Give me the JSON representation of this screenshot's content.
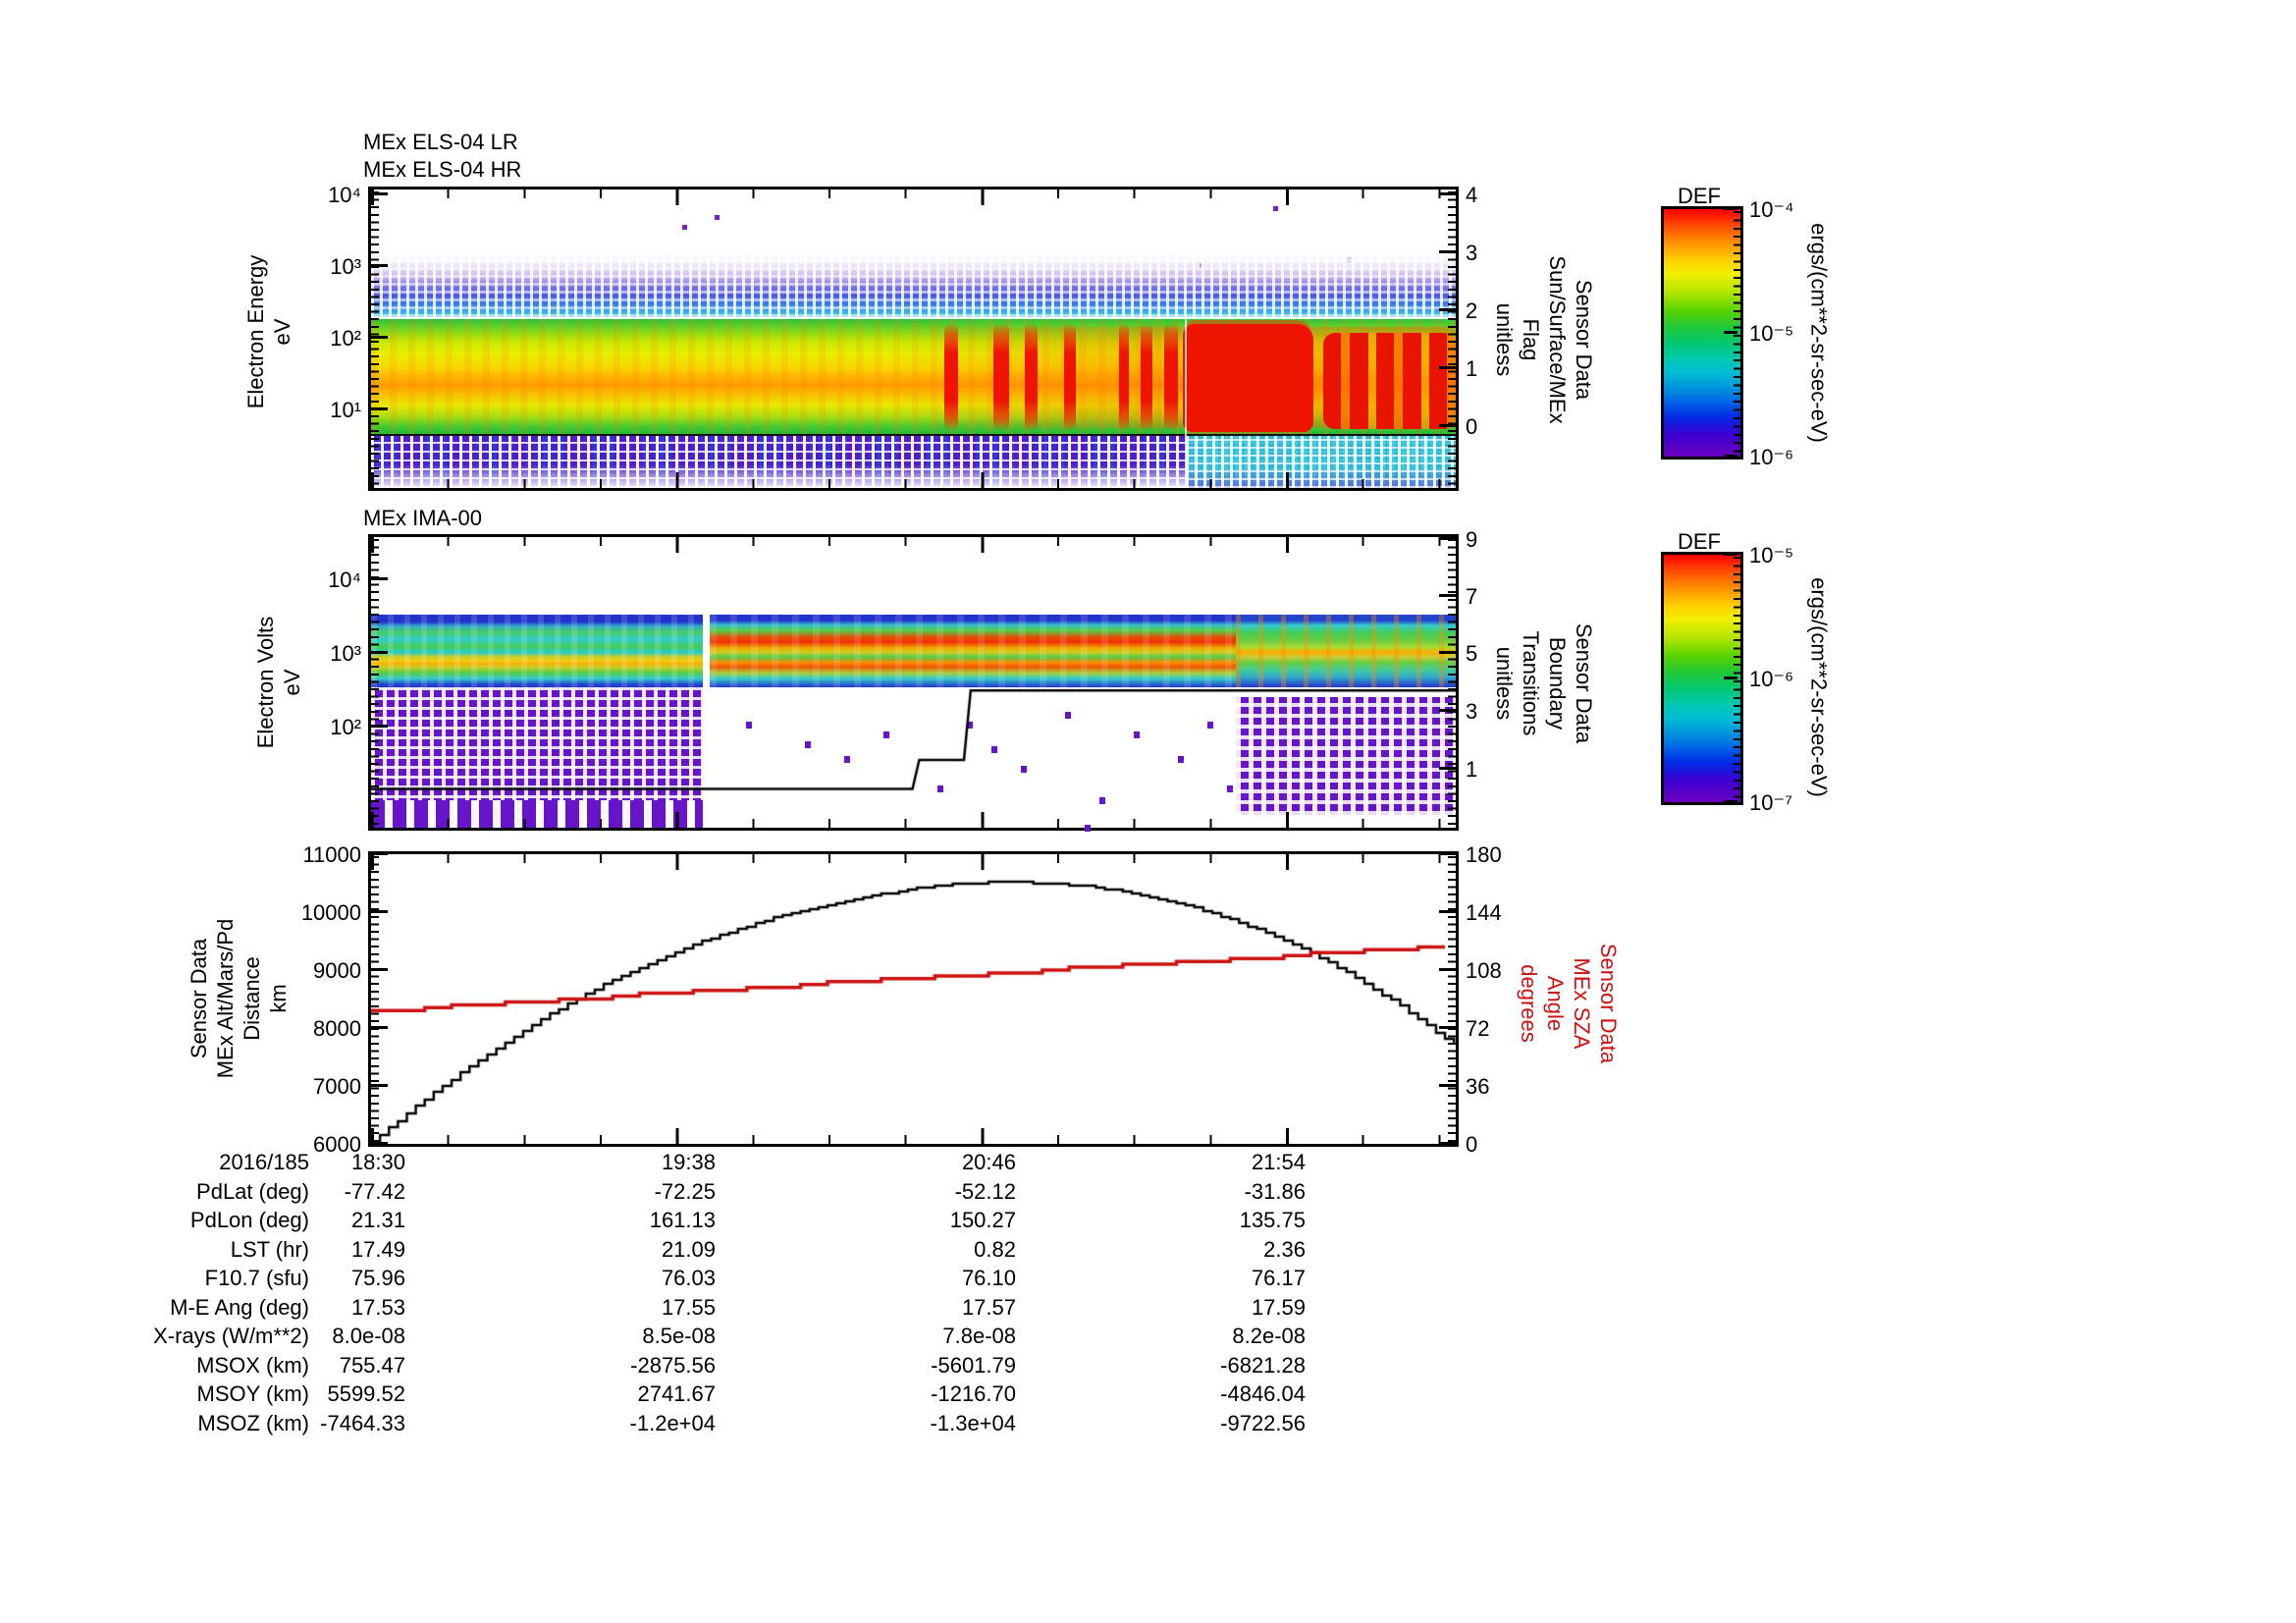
{
  "panels": {
    "els": {
      "titles": [
        "MEx ELS-04 LR",
        "MEx ELS-04 HR"
      ],
      "ylabel": "Electron Energy\neV",
      "yticks": [
        "10⁴",
        "10³",
        "10²",
        "10¹"
      ],
      "right_label": "Sensor Data\nSun/Surface/MEx\nFlag\nunitless",
      "flag_ticks": [
        "4",
        "3",
        "2",
        "1",
        "0"
      ]
    },
    "ima": {
      "title": "MEx IMA-00",
      "ylabel": "Electron Volts\neV",
      "yticks": [
        "10⁴",
        "10³",
        "10²"
      ],
      "right_label": "Sensor Data\nBoundary\nTransitions\nunitless",
      "right_ticks": [
        "9",
        "7",
        "5",
        "3",
        "1"
      ]
    },
    "alt": {
      "ylabel": "Sensor Data\nMEx Alt/Mars/Pd\nDistance\nkm",
      "yticks": [
        "11000",
        "10000",
        "9000",
        "8000",
        "7000",
        "6000"
      ],
      "right_label": "Sensor Data\nMEx SZA\nAngle\ndegrees",
      "right_ticks": [
        "180",
        "144",
        "108",
        "72",
        "36",
        "0"
      ],
      "sza_color": "#cc1111",
      "alt_color": "#000000"
    }
  },
  "colorbars": [
    {
      "title": "DEF",
      "ticks": [
        "10⁻⁴",
        "10⁻⁵",
        "10⁻⁶"
      ],
      "unit": "ergs/(cm**2-sr-sec-eV)"
    },
    {
      "title": "DEF",
      "ticks": [
        "10⁻⁵",
        "10⁻⁶",
        "10⁻⁷"
      ],
      "unit": "ergs/(cm**2-sr-sec-eV)"
    }
  ],
  "table": {
    "rows": [
      {
        "label": "2016/185",
        "values": [
          "18:30",
          "19:38",
          "20:46",
          "21:54"
        ]
      },
      {
        "label": "PdLat (deg)",
        "values": [
          "-77.42",
          "-72.25",
          "-52.12",
          "-31.86"
        ]
      },
      {
        "label": "PdLon (deg)",
        "values": [
          "21.31",
          "161.13",
          "150.27",
          "135.75"
        ]
      },
      {
        "label": "LST (hr)",
        "values": [
          "17.49",
          "21.09",
          "0.82",
          "2.36"
        ]
      },
      {
        "label": "F10.7 (sfu)",
        "values": [
          "75.96",
          "76.03",
          "76.10",
          "76.17"
        ]
      },
      {
        "label": "M-E Ang (deg)",
        "values": [
          "17.53",
          "17.55",
          "17.57",
          "17.59"
        ]
      },
      {
        "label": "X-rays (W/m**2)",
        "values": [
          "8.0e-08",
          "8.5e-08",
          "7.8e-08",
          "8.2e-08"
        ]
      },
      {
        "label": "MSOX (km)",
        "values": [
          "755.47",
          "-2875.56",
          "-5601.79",
          "-6821.28"
        ]
      },
      {
        "label": "MSOY (km)",
        "values": [
          "5599.52",
          "2741.67",
          "-1216.70",
          "-4846.04"
        ]
      },
      {
        "label": "MSOZ (km)",
        "values": [
          "-7464.33",
          "-1.2e+04",
          "-1.3e+04",
          "-9722.56"
        ]
      }
    ]
  },
  "chart_data": [
    {
      "type": "heatmap",
      "title": "MEx ELS-04 LR / MEx ELS-04 HR",
      "ylabel": "Electron Energy (eV)",
      "y_scale": "log",
      "ylim": [
        1,
        10000
      ],
      "zlabel": "DEF ergs/(cm**2-sr-sec-eV)",
      "zlim": [
        1e-06,
        0.0001
      ],
      "x_range": "2016/185 18:30 to ~22:32 UT",
      "bands": [
        {
          "energy_eV": [
            200,
            600
          ],
          "flux": "~1e-6 (blue/purple speckle)"
        },
        {
          "energy_eV": [
            40,
            150
          ],
          "flux": "~1e-5 (green)"
        },
        {
          "energy_eV": [
            8,
            40
          ],
          "flux": "~3e-5 (yellow-orange core)"
        },
        {
          "energy_eV": [
            1,
            7
          ],
          "flux": "~1e-6 (blue/purple speckle)"
        }
      ],
      "features": [
        "narrow red bursts (~1e-4) at 10-100 eV between ~20:15 and 21:05",
        "sustained intense red band ~21:10 to end",
        "thin white line near 150 eV",
        "dark horizontal line near 7 eV",
        "sub-7 eV background turns cyan after ~21:10"
      ]
    },
    {
      "type": "heatmap",
      "title": "MEx IMA-00",
      "ylabel": "Electron Volts (eV)",
      "y_scale": "log",
      "ylim": [
        10,
        30000
      ],
      "zlabel": "DEF ergs/(cm**2-sr-sec-eV)",
      "zlim": [
        1e-07,
        1e-05
      ],
      "bands": [
        {
          "energy_eV": [
            700,
            4000
          ],
          "flux": "banded green/yellow, red-orange lines near 1000 and 2500 eV after ~19:45"
        },
        {
          "energy_eV": [
            10,
            700
          ],
          "flux": "purple speckle before ~19:44 and after ~21:43, nearly empty between"
        }
      ],
      "overlay_series": {
        "name": "Boundary Transitions (unitless)",
        "ylim": [
          0,
          9
        ],
        "steps_minutes_value": [
          [
            0,
            1.2
          ],
          [
            121,
            1.2
          ],
          [
            122.5,
            2.1
          ],
          [
            132.5,
            2.1
          ],
          [
            134,
            4.25
          ],
          [
            242.4,
            4.25
          ]
        ]
      }
    },
    {
      "type": "line",
      "start_time": "2016/185 18:30",
      "xticks": [
        "18:30",
        "19:38",
        "20:46",
        "21:54"
      ],
      "xtick_interval_minutes": 68,
      "x_minutes": [
        0,
        10,
        20,
        30,
        40,
        50,
        60,
        70,
        80,
        90,
        100,
        110,
        120,
        130,
        140,
        150,
        160,
        170,
        180,
        190,
        200,
        210,
        220,
        230,
        240,
        242
      ],
      "ylim_left": [
        6000,
        11000
      ],
      "ylim_right": [
        0,
        180
      ],
      "series": [
        {
          "name": "MEx Alt/Mars/Pd Distance",
          "unit": "km",
          "axis": "left",
          "color": "#000000",
          "values": [
            6030,
            6650,
            7230,
            7760,
            8240,
            8670,
            9050,
            9380,
            9660,
            9900,
            10100,
            10260,
            10390,
            10480,
            10520,
            10505,
            10445,
            10330,
            10160,
            9930,
            9640,
            9290,
            8870,
            8380,
            7820,
            7750
          ]
        },
        {
          "name": "MEx SZA Angle",
          "unit": "degrees",
          "axis": "right",
          "color": "#cc1111",
          "values": [
            82.5,
            84.2,
            86.0,
            87.7,
            89.4,
            91.1,
            92.8,
            94.5,
            96.2,
            97.9,
            99.6,
            101.2,
            102.9,
            104.6,
            106.3,
            108.0,
            109.7,
            111.3,
            113.0,
            114.7,
            116.3,
            118.0,
            119.6,
            121.2,
            122.8,
            123.1
          ]
        }
      ]
    }
  ]
}
